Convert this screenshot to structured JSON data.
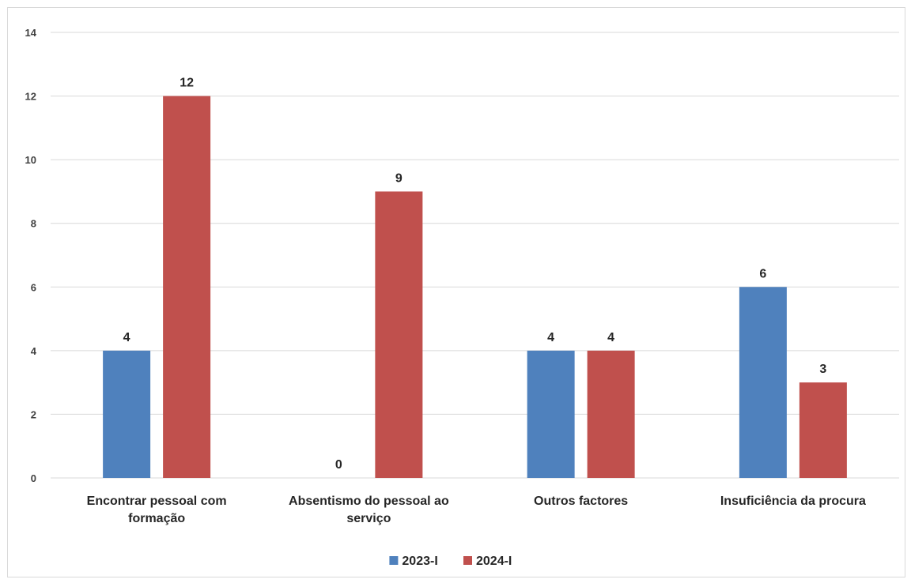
{
  "chart_data": {
    "type": "bar",
    "title": "",
    "xlabel": "",
    "ylabel": "",
    "categories": [
      [
        "Encontrar pessoal com",
        "formação"
      ],
      [
        "Absentismo do pessoal ao",
        "serviço"
      ],
      [
        "Outros factores"
      ],
      [
        "Insuficiência da procura"
      ]
    ],
    "series": [
      {
        "name": "2023-I",
        "color": "#4f81bd",
        "values": [
          4,
          0,
          4,
          6
        ]
      },
      {
        "name": "2024-I",
        "color": "#c0504d",
        "values": [
          12,
          9,
          4,
          3
        ]
      }
    ],
    "ylim": [
      0,
      14
    ],
    "yticks": [
      0,
      2,
      4,
      6,
      8,
      10,
      12,
      14
    ],
    "grid": true,
    "gridColor": "#d9d9d9",
    "legend": "bottom"
  }
}
